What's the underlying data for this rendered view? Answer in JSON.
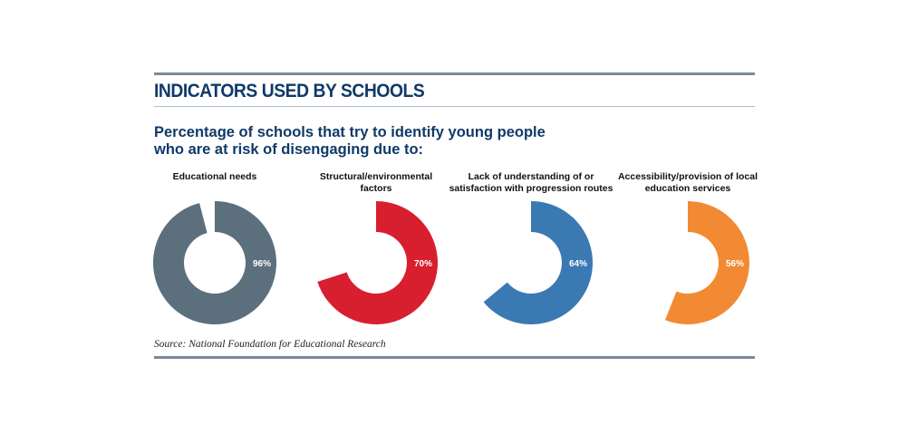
{
  "title": "INDICATORS USED BY SCHOOLS",
  "subtitle_line1": "Percentage of schools that try to identify young people",
  "subtitle_line2": "who are at risk of disengaging due to:",
  "source": "Source: National Foundation for Educational Research",
  "labels": [
    [
      "Educational needs"
    ],
    [
      "Structural/environmental",
      "factors"
    ],
    [
      "Lack of understanding of or",
      "satisfaction with progression routes"
    ],
    [
      "Accessibility/provision of local",
      "education services"
    ]
  ],
  "chart_data": {
    "type": "pie",
    "variant": "donut",
    "charts": [
      {
        "category": "Educational needs",
        "value": 96,
        "label": "96%",
        "color": "#5b6f7c"
      },
      {
        "category": "Structural/environmental factors",
        "value": 70,
        "label": "70%",
        "color": "#d81f2f"
      },
      {
        "category": "Lack of understanding of or satisfaction with progression routes",
        "value": 64,
        "label": "64%",
        "color": "#3b79b3"
      },
      {
        "category": "Accessibility/provision of local education services",
        "value": 56,
        "label": "56%",
        "color": "#f28a33"
      }
    ]
  }
}
